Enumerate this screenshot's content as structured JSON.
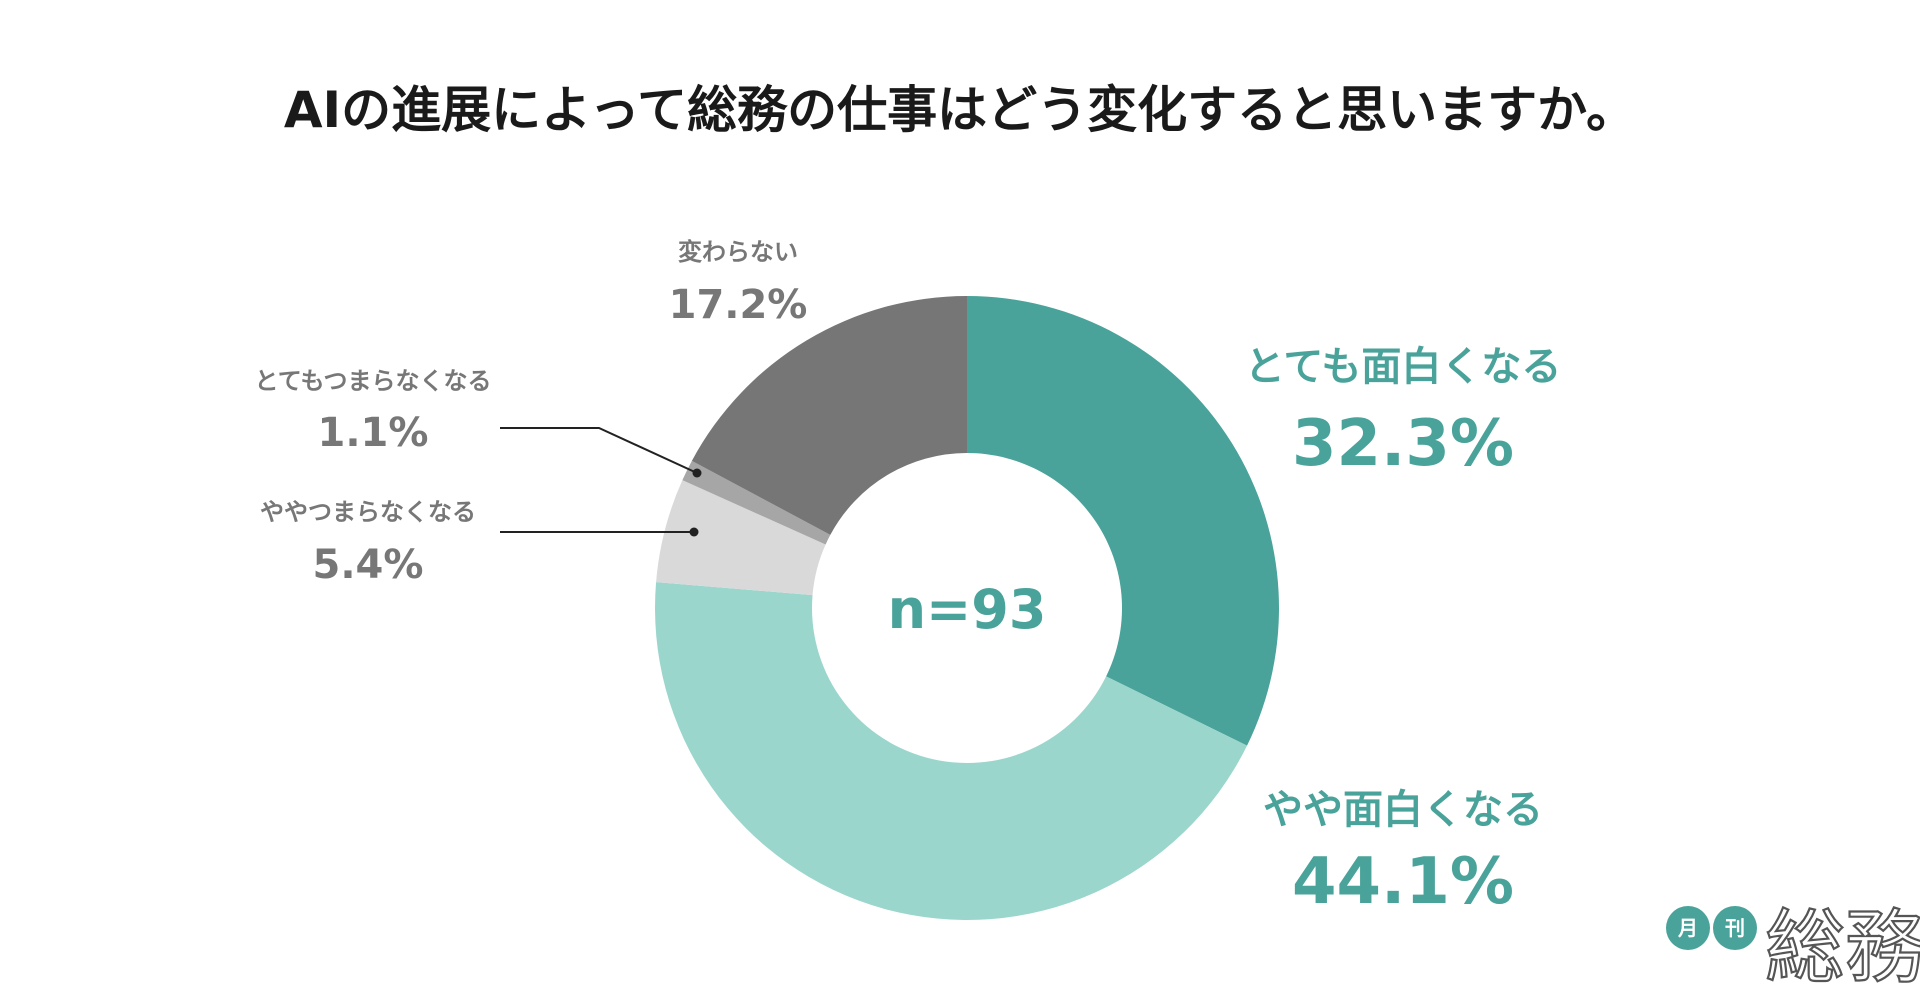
{
  "title": "AIの進展によって総務の仕事はどう変化すると思いますか。",
  "center_label": "n=93",
  "logo": {
    "circle_1": "月",
    "circle_2": "刊",
    "word": "総務",
    "colors": {
      "circle": "#4aa39a"
    }
  },
  "colors": {
    "very_interesting": "#4aa39a",
    "somewhat_interesting": "#9bd6cd",
    "somewhat_boring": "#d9d9d9",
    "very_boring": "#a6a6a6",
    "no_change": "#767676",
    "label_teal": "#4aa39a",
    "label_gray": "#777777"
  },
  "chart_data": {
    "type": "pie",
    "title": "AIの進展によって総務の仕事はどう変化すると思いますか。",
    "center_text": "n=93",
    "slices": [
      {
        "label": "とても面白くなる",
        "value": 32.3,
        "display": "32.3%",
        "color": "#4aa39a"
      },
      {
        "label": "やや面白くなる",
        "value": 44.1,
        "display": "44.1%",
        "color": "#9bd6cd"
      },
      {
        "label": "ややつまらなくなる",
        "value": 5.4,
        "display": "5.4%",
        "color": "#d9d9d9"
      },
      {
        "label": "とてもつまらなくなる",
        "value": 1.1,
        "display": "1.1%",
        "color": "#a6a6a6"
      },
      {
        "label": "変わらない",
        "value": 17.2,
        "display": "17.2%",
        "color": "#767676"
      }
    ]
  }
}
